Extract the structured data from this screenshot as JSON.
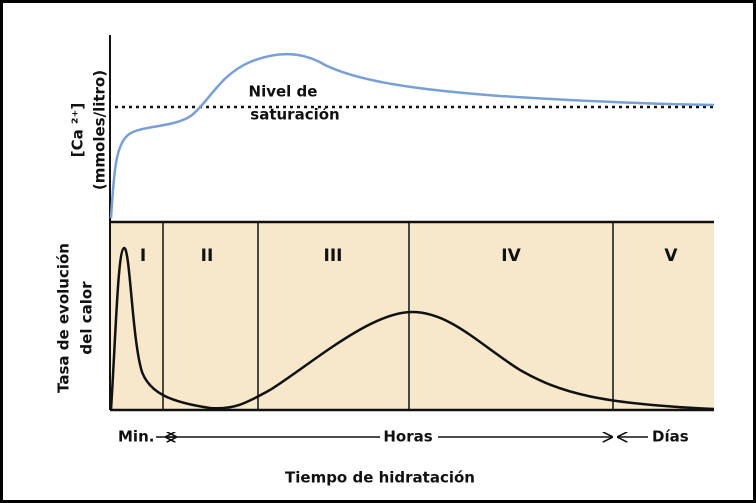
{
  "y_labels": {
    "top": [
      "[Ca ²⁺]",
      "(mmoles/litro)"
    ],
    "bottom": [
      "Tasa de evolución",
      "del calor"
    ]
  },
  "saturation_label": [
    "Nivel de",
    "saturación"
  ],
  "stages": [
    "I",
    "II",
    "III",
    "IV",
    "V"
  ],
  "time_labels": [
    "Min.",
    "Horas",
    "Días"
  ],
  "x_title": "Tiempo de hidratación"
}
